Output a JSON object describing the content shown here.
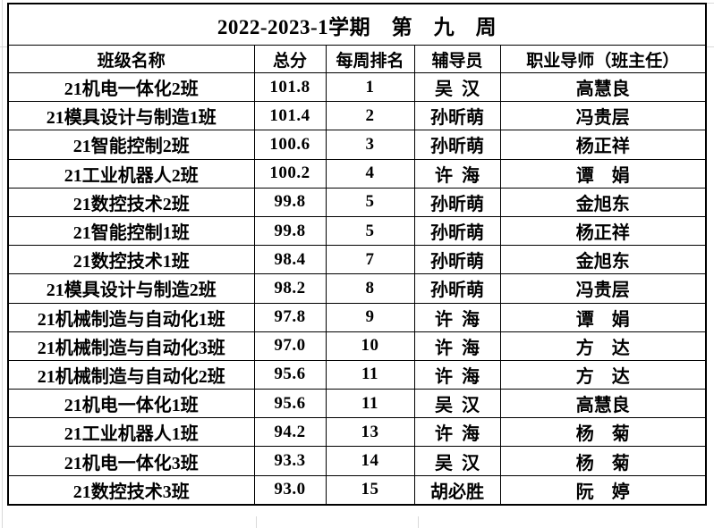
{
  "page": {
    "background": "#ffffff",
    "border_color": "#000000",
    "gridline_color": "#d9d9d9",
    "text_color": "#000000"
  },
  "table": {
    "title": "2022-2023-1学期　第　九　周",
    "columns": [
      "班级名称",
      "总分",
      "每周排名",
      "辅导员",
      "职业导师（班主任）"
    ],
    "rows": [
      {
        "class_name": "21机电一体化2班",
        "score": "101.8",
        "rank": "1",
        "counselor": "吴  汉",
        "mentor": "高慧良"
      },
      {
        "class_name": "21模具设计与制造1班",
        "score": "101.4",
        "rank": "2",
        "counselor": "孙昕萌",
        "mentor": "冯贵层"
      },
      {
        "class_name": "21智能控制2班",
        "score": "100.6",
        "rank": "3",
        "counselor": "孙昕萌",
        "mentor": "杨正祥"
      },
      {
        "class_name": "21工业机器人2班",
        "score": "100.2",
        "rank": "4",
        "counselor": "许  海",
        "mentor": "谭　娟"
      },
      {
        "class_name": "21数控技术2班",
        "score": "99.8",
        "rank": "5",
        "counselor": "孙昕萌",
        "mentor": "金旭东"
      },
      {
        "class_name": "21智能控制1班",
        "score": "99.8",
        "rank": "5",
        "counselor": "孙昕萌",
        "mentor": "杨正祥"
      },
      {
        "class_name": "21数控技术1班",
        "score": "98.4",
        "rank": "7",
        "counselor": "孙昕萌",
        "mentor": "金旭东"
      },
      {
        "class_name": "21模具设计与制造2班",
        "score": "98.2",
        "rank": "8",
        "counselor": "孙昕萌",
        "mentor": "冯贵层"
      },
      {
        "class_name": "21机械制造与自动化1班",
        "score": "97.8",
        "rank": "9",
        "counselor": "许  海",
        "mentor": "谭　娟"
      },
      {
        "class_name": "21机械制造与自动化3班",
        "score": "97.0",
        "rank": "10",
        "counselor": "许  海",
        "mentor": "方　达"
      },
      {
        "class_name": "21机械制造与自动化2班",
        "score": "95.6",
        "rank": "11",
        "counselor": "许  海",
        "mentor": "方　达"
      },
      {
        "class_name": "21机电一体化1班",
        "score": "95.6",
        "rank": "11",
        "counselor": "吴  汉",
        "mentor": "高慧良"
      },
      {
        "class_name": "21工业机器人1班",
        "score": "94.2",
        "rank": "13",
        "counselor": "许  海",
        "mentor": "杨　菊"
      },
      {
        "class_name": "21机电一体化3班",
        "score": "93.3",
        "rank": "14",
        "counselor": "吴  汉",
        "mentor": "杨　菊"
      },
      {
        "class_name": "21数控技术3班",
        "score": "93.0",
        "rank": "15",
        "counselor": "胡必胜",
        "mentor": "阮　婷"
      }
    ]
  }
}
